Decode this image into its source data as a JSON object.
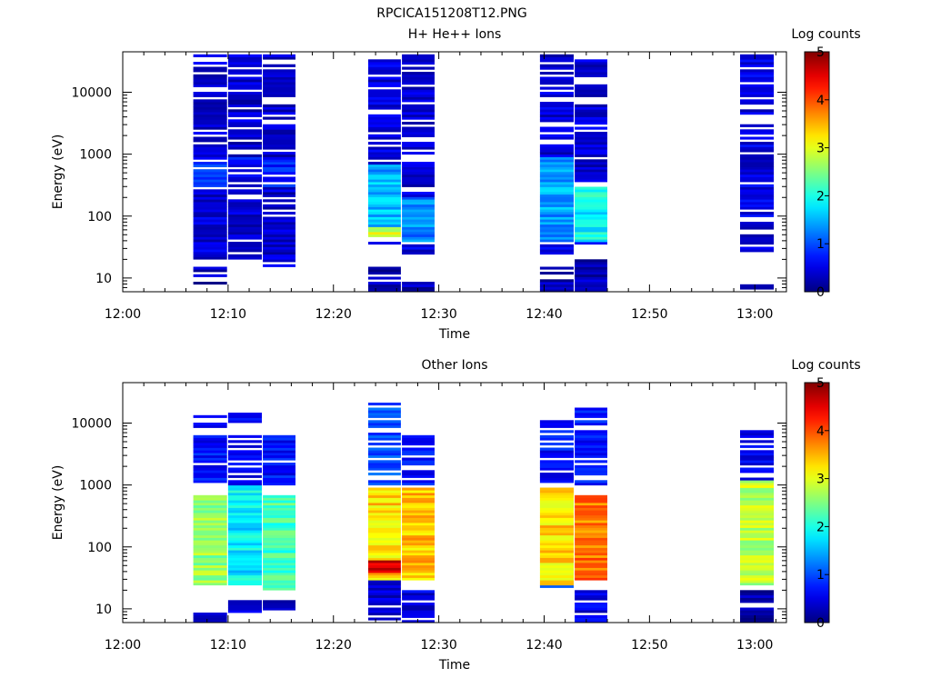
{
  "figure_title": "RPCICA151208T12.PNG",
  "chart_data": [
    {
      "type": "heatmap",
      "title": "H+ He++ Ions",
      "xlabel": "Time",
      "ylabel": "Energy (eV)",
      "x_ticks": [
        "12:00",
        "12:10",
        "12:20",
        "12:30",
        "12:40",
        "12:50",
        "13:00"
      ],
      "xlim": [
        "12:00",
        "13:03"
      ],
      "y_scale": "log",
      "y_ticks": [
        10,
        100,
        1000,
        10000
      ],
      "ylim": [
        6,
        45000
      ],
      "colorbar": {
        "label": "Log counts",
        "ticks": [
          0,
          1,
          2,
          3,
          4,
          5
        ],
        "range": [
          0,
          5
        ],
        "colormap": "jet"
      },
      "columns": [
        {
          "t_start": "12:06.7",
          "t_end": "12:09.9",
          "bands": [
            {
              "e_lo": 20,
              "e_hi": 40000,
              "level": 0.35
            },
            {
              "e_lo": 300,
              "e_hi": 800,
              "level": 0.9
            },
            {
              "e_lo": 6,
              "e_hi": 15,
              "level": 0.2
            }
          ]
        },
        {
          "t_start": "12:10.0",
          "t_end": "12:13.2",
          "bands": [
            {
              "e_lo": 20,
              "e_hi": 40000,
              "level": 0.3
            },
            {
              "e_lo": 400,
              "e_hi": 900,
              "level": 0.6
            }
          ]
        },
        {
          "t_start": "12:13.3",
          "t_end": "12:16.4",
          "bands": [
            {
              "e_lo": 15,
              "e_hi": 40000,
              "level": 0.3
            },
            {
              "e_lo": 300,
              "e_hi": 800,
              "level": 0.7
            }
          ]
        },
        {
          "t_start": "12:23.3",
          "t_end": "12:26.4",
          "bands": [
            {
              "e_lo": 35,
              "e_hi": 35000,
              "level": 0.35
            },
            {
              "e_lo": 70,
              "e_hi": 700,
              "level": 1.5
            },
            {
              "e_lo": 45,
              "e_hi": 70,
              "level": 2.9
            },
            {
              "e_lo": 6,
              "e_hi": 15,
              "level": 0.2
            }
          ]
        },
        {
          "t_start": "12:26.5",
          "t_end": "12:29.6",
          "bands": [
            {
              "e_lo": 25,
              "e_hi": 40000,
              "level": 0.35
            },
            {
              "e_lo": 40,
              "e_hi": 200,
              "level": 1.3
            },
            {
              "e_lo": 6,
              "e_hi": 9,
              "level": 0.2
            }
          ]
        },
        {
          "t_start": "12:39.6",
          "t_end": "12:42.8",
          "bands": [
            {
              "e_lo": 25,
              "e_hi": 40000,
              "level": 0.35
            },
            {
              "e_lo": 40,
              "e_hi": 900,
              "level": 1.4
            },
            {
              "e_lo": 6,
              "e_hi": 15,
              "level": 0.2
            }
          ]
        },
        {
          "t_start": "12:42.9",
          "t_end": "12:46.0",
          "bands": [
            {
              "e_lo": 35,
              "e_hi": 35000,
              "level": 0.35
            },
            {
              "e_lo": 40,
              "e_hi": 300,
              "level": 1.9
            },
            {
              "e_lo": 6,
              "e_hi": 20,
              "level": 0.2
            }
          ]
        },
        {
          "t_start": "12:58.6",
          "t_end": "13:01.8",
          "bands": [
            {
              "e_lo": 20,
              "e_hi": 40000,
              "level": 0.4
            },
            {
              "e_lo": 6,
              "e_hi": 9,
              "level": 0.2
            }
          ]
        }
      ]
    },
    {
      "type": "heatmap",
      "title": "Other Ions",
      "xlabel": "Time",
      "ylabel": "Energy (eV)",
      "x_ticks": [
        "12:00",
        "12:10",
        "12:20",
        "12:30",
        "12:40",
        "12:50",
        "13:00"
      ],
      "xlim": [
        "12:00",
        "13:03"
      ],
      "y_scale": "log",
      "y_ticks": [
        10,
        100,
        1000,
        10000
      ],
      "ylim": [
        6,
        45000
      ],
      "colorbar": {
        "label": "Log counts",
        "ticks": [
          0,
          1,
          2,
          3,
          4,
          5
        ],
        "range": [
          0,
          5
        ],
        "colormap": "jet"
      },
      "columns": [
        {
          "t_start": "12:06.7",
          "t_end": "12:09.9",
          "bands": [
            {
              "e_lo": 1000,
              "e_hi": 14000,
              "level": 0.6
            },
            {
              "e_lo": 25,
              "e_hi": 700,
              "level": 2.6
            },
            {
              "e_lo": 6,
              "e_hi": 9,
              "level": 0.2
            }
          ]
        },
        {
          "t_start": "12:10.0",
          "t_end": "12:13.2",
          "bands": [
            {
              "e_lo": 1000,
              "e_hi": 15000,
              "level": 0.5
            },
            {
              "e_lo": 25,
              "e_hi": 1000,
              "level": 1.8
            },
            {
              "e_lo": 9,
              "e_hi": 14,
              "level": 0.3
            }
          ]
        },
        {
          "t_start": "12:13.3",
          "t_end": "12:16.4",
          "bands": [
            {
              "e_lo": 1000,
              "e_hi": 6500,
              "level": 0.6
            },
            {
              "e_lo": 20,
              "e_hi": 700,
              "level": 2.2
            },
            {
              "e_lo": 9,
              "e_hi": 14,
              "level": 0.3
            }
          ]
        },
        {
          "t_start": "12:23.3",
          "t_end": "12:26.4",
          "bands": [
            {
              "e_lo": 1000,
              "e_hi": 21000,
              "level": 0.9
            },
            {
              "e_lo": 30,
              "e_hi": 900,
              "level": 3.3
            },
            {
              "e_lo": 40,
              "e_hi": 60,
              "level": 4.6
            },
            {
              "e_lo": 6,
              "e_hi": 30,
              "level": 0.3
            }
          ]
        },
        {
          "t_start": "12:26.5",
          "t_end": "12:29.6",
          "bands": [
            {
              "e_lo": 1000,
              "e_hi": 7500,
              "level": 0.6
            },
            {
              "e_lo": 30,
              "e_hi": 900,
              "level": 3.4
            },
            {
              "e_lo": 6,
              "e_hi": 20,
              "level": 0.4
            }
          ]
        },
        {
          "t_start": "12:39.6",
          "t_end": "12:42.8",
          "bands": [
            {
              "e_lo": 1000,
              "e_hi": 11000,
              "level": 0.6
            },
            {
              "e_lo": 25,
              "e_hi": 900,
              "level": 3.3
            },
            {
              "e_lo": 20,
              "e_hi": 25,
              "level": 0.8
            }
          ]
        },
        {
          "t_start": "12:42.9",
          "t_end": "12:46.0",
          "bands": [
            {
              "e_lo": 1000,
              "e_hi": 18000,
              "level": 0.6
            },
            {
              "e_lo": 30,
              "e_hi": 700,
              "level": 3.8
            },
            {
              "e_lo": 6,
              "e_hi": 20,
              "level": 0.4
            }
          ]
        },
        {
          "t_start": "12:58.6",
          "t_end": "13:01.8",
          "bands": [
            {
              "e_lo": 1000,
              "e_hi": 7500,
              "level": 0.4
            },
            {
              "e_lo": 25,
              "e_hi": 1200,
              "level": 2.8
            },
            {
              "e_lo": 6,
              "e_hi": 20,
              "level": 0.1
            }
          ]
        }
      ]
    }
  ]
}
